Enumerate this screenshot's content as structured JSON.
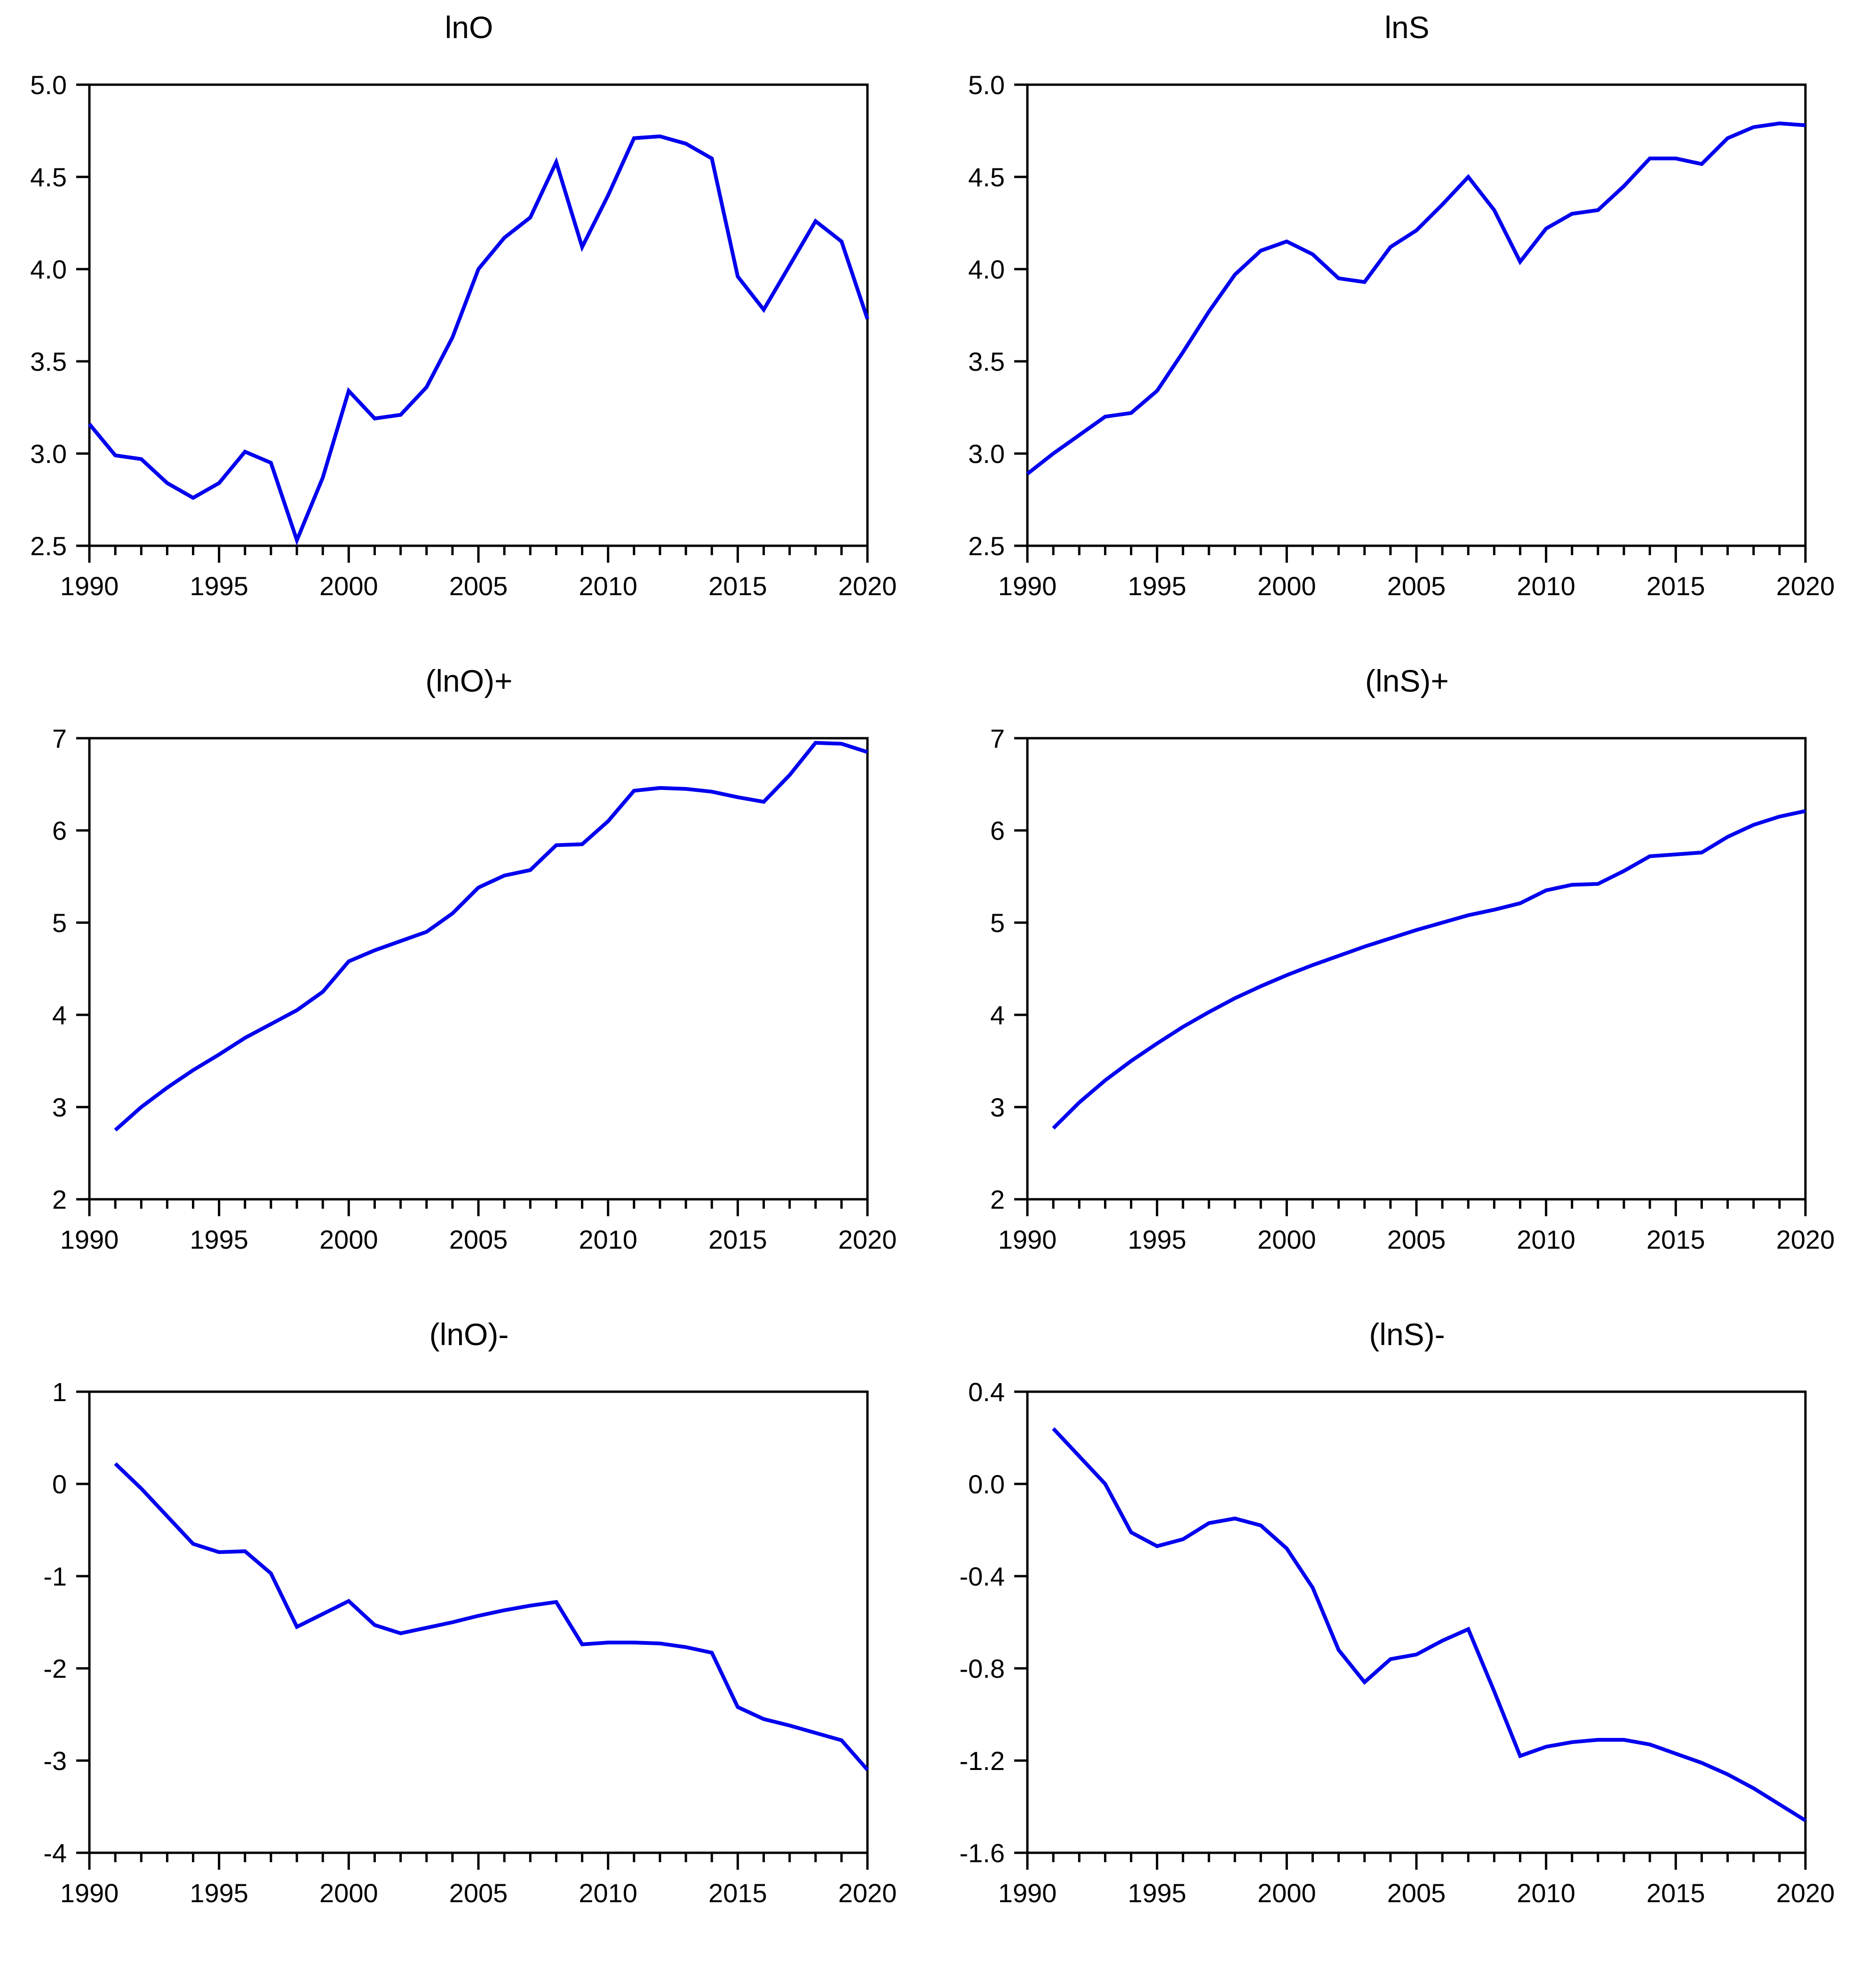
{
  "page": {
    "background": "#FFFFFF",
    "layout": "3x2 grid of line charts"
  },
  "chart_style": {
    "line_color": "#0000EE",
    "axis_color": "#000000",
    "line_width": 8,
    "axis_width": 5,
    "major_tick_len": 36,
    "minor_tick_len": 20,
    "y_tick_len": 28
  },
  "chart_data": [
    {
      "type": "line",
      "title": "lnO",
      "xlabel": "",
      "ylabel": "",
      "grid": false,
      "legend": null,
      "xlim": [
        1990,
        2020
      ],
      "ylim": [
        2.5,
        5.0
      ],
      "xticks": [
        1990,
        1995,
        2000,
        2005,
        2010,
        2015,
        2020
      ],
      "xtick_labels": [
        "1990",
        "1995",
        "2000",
        "2005",
        "2010",
        "2015",
        "2020"
      ],
      "yticks": [
        2.5,
        3.0,
        3.5,
        4.0,
        4.5,
        5.0
      ],
      "ytick_labels": [
        "2.5",
        "3.0",
        "3.5",
        "4.0",
        "4.5",
        "5.0"
      ],
      "x": [
        1990,
        1991,
        1992,
        1993,
        1994,
        1995,
        1996,
        1997,
        1998,
        1999,
        2000,
        2001,
        2002,
        2003,
        2004,
        2005,
        2006,
        2007,
        2008,
        2009,
        2010,
        2011,
        2012,
        2013,
        2014,
        2015,
        2016,
        2017,
        2018,
        2019,
        2020
      ],
      "values": [
        3.16,
        2.99,
        2.97,
        2.84,
        2.76,
        2.84,
        3.01,
        2.95,
        2.53,
        2.87,
        3.34,
        3.19,
        3.21,
        3.36,
        3.63,
        4.0,
        4.17,
        4.28,
        4.58,
        4.12,
        4.4,
        4.71,
        4.72,
        4.68,
        4.6,
        3.96,
        3.78,
        4.02,
        4.26,
        4.15,
        3.73
      ]
    },
    {
      "type": "line",
      "title": "lnS",
      "xlabel": "",
      "ylabel": "",
      "grid": false,
      "legend": null,
      "xlim": [
        1990,
        2020
      ],
      "ylim": [
        2.5,
        5.0
      ],
      "xticks": [
        1990,
        1995,
        2000,
        2005,
        2010,
        2015,
        2020
      ],
      "xtick_labels": [
        "1990",
        "1995",
        "2000",
        "2005",
        "2010",
        "2015",
        "2020"
      ],
      "yticks": [
        2.5,
        3.0,
        3.5,
        4.0,
        4.5,
        5.0
      ],
      "ytick_labels": [
        "2.5",
        "3.0",
        "3.5",
        "4.0",
        "4.5",
        "5.0"
      ],
      "x": [
        1990,
        1991,
        1992,
        1993,
        1994,
        1995,
        1996,
        1997,
        1998,
        1999,
        2000,
        2001,
        2002,
        2003,
        2004,
        2005,
        2006,
        2007,
        2008,
        2009,
        2010,
        2011,
        2012,
        2013,
        2014,
        2015,
        2016,
        2017,
        2018,
        2019,
        2020
      ],
      "values": [
        2.89,
        3.0,
        3.1,
        3.2,
        3.22,
        3.34,
        3.55,
        3.77,
        3.97,
        4.1,
        4.15,
        4.08,
        3.95,
        3.93,
        4.12,
        4.21,
        4.35,
        4.5,
        4.32,
        4.04,
        4.22,
        4.3,
        4.32,
        4.45,
        4.6,
        4.6,
        4.57,
        4.71,
        4.77,
        4.79,
        4.78
      ]
    },
    {
      "type": "line",
      "title": "(lnO)+",
      "xlabel": "",
      "ylabel": "",
      "grid": false,
      "legend": null,
      "xlim": [
        1990,
        2020
      ],
      "ylim": [
        2,
        7
      ],
      "xticks": [
        1990,
        1995,
        2000,
        2005,
        2010,
        2015,
        2020
      ],
      "xtick_labels": [
        "1990",
        "1995",
        "2000",
        "2005",
        "2010",
        "2015",
        "2020"
      ],
      "yticks": [
        2,
        3,
        4,
        5,
        6,
        7
      ],
      "ytick_labels": [
        "2",
        "3",
        "4",
        "5",
        "6",
        "7"
      ],
      "x": [
        1991,
        1992,
        1993,
        1994,
        1995,
        1996,
        1997,
        1998,
        1999,
        2000,
        2001,
        2002,
        2003,
        2004,
        2005,
        2006,
        2007,
        2008,
        2009,
        2010,
        2011,
        2012,
        2013,
        2014,
        2015,
        2016,
        2017,
        2018,
        2019,
        2020
      ],
      "values": [
        2.75,
        3.0,
        3.21,
        3.4,
        3.57,
        3.75,
        3.9,
        4.05,
        4.25,
        4.58,
        4.7,
        4.8,
        4.9,
        5.1,
        5.38,
        5.51,
        5.57,
        5.84,
        5.85,
        6.1,
        6.43,
        6.46,
        6.45,
        6.42,
        6.36,
        6.31,
        6.6,
        6.95,
        6.94,
        6.85
      ]
    },
    {
      "type": "line",
      "title": "(lnS)+",
      "xlabel": "",
      "ylabel": "",
      "grid": false,
      "legend": null,
      "xlim": [
        1990,
        2020
      ],
      "ylim": [
        2,
        7
      ],
      "xticks": [
        1990,
        1995,
        2000,
        2005,
        2010,
        2015,
        2020
      ],
      "xtick_labels": [
        "1990",
        "1995",
        "2000",
        "2005",
        "2010",
        "2015",
        "2020"
      ],
      "yticks": [
        2,
        3,
        4,
        5,
        6,
        7
      ],
      "ytick_labels": [
        "2",
        "3",
        "4",
        "5",
        "6",
        "7"
      ],
      "x": [
        1991,
        1992,
        1993,
        1994,
        1995,
        1996,
        1997,
        1998,
        1999,
        2000,
        2001,
        2002,
        2003,
        2004,
        2005,
        2006,
        2007,
        2008,
        2009,
        2010,
        2011,
        2012,
        2013,
        2014,
        2015,
        2016,
        2017,
        2018,
        2019,
        2020
      ],
      "values": [
        2.77,
        3.05,
        3.29,
        3.5,
        3.69,
        3.87,
        4.03,
        4.18,
        4.31,
        4.43,
        4.54,
        4.64,
        4.74,
        4.83,
        4.92,
        5.0,
        5.08,
        5.14,
        5.21,
        5.35,
        5.41,
        5.42,
        5.56,
        5.72,
        5.74,
        5.76,
        5.93,
        6.06,
        6.15,
        6.21
      ]
    },
    {
      "type": "line",
      "title": "(lnO)-",
      "xlabel": "",
      "ylabel": "",
      "grid": false,
      "legend": null,
      "xlim": [
        1990,
        2020
      ],
      "ylim": [
        -4,
        1
      ],
      "xticks": [
        1990,
        1995,
        2000,
        2005,
        2010,
        2015,
        2020
      ],
      "xtick_labels": [
        "1990",
        "1995",
        "2000",
        "2005",
        "2010",
        "2015",
        "2020"
      ],
      "yticks": [
        -4,
        -3,
        -2,
        -1,
        0,
        1
      ],
      "ytick_labels": [
        "-4",
        "-3",
        "-2",
        "-1",
        "0",
        "1"
      ],
      "x": [
        1991,
        1992,
        1993,
        1994,
        1995,
        1996,
        1997,
        1998,
        1999,
        2000,
        2001,
        2002,
        2003,
        2004,
        2005,
        2006,
        2007,
        2008,
        2009,
        2010,
        2011,
        2012,
        2013,
        2014,
        2015,
        2016,
        2017,
        2018,
        2019,
        2020
      ],
      "values": [
        0.22,
        -0.05,
        -0.35,
        -0.65,
        -0.74,
        -0.73,
        -0.97,
        -1.55,
        -1.41,
        -1.27,
        -1.53,
        -1.62,
        -1.56,
        -1.5,
        -1.43,
        -1.37,
        -1.32,
        -1.28,
        -1.74,
        -1.72,
        -1.72,
        -1.73,
        -1.77,
        -1.83,
        -2.42,
        -2.55,
        -2.62,
        -2.7,
        -2.78,
        -3.1
      ]
    },
    {
      "type": "line",
      "title": "(lnS)-",
      "xlabel": "",
      "ylabel": "",
      "grid": false,
      "legend": null,
      "xlim": [
        1990,
        2020
      ],
      "ylim": [
        -1.6,
        0.4
      ],
      "xticks": [
        1990,
        1995,
        2000,
        2005,
        2010,
        2015,
        2020
      ],
      "xtick_labels": [
        "1990",
        "1995",
        "2000",
        "2005",
        "2010",
        "2015",
        "2020"
      ],
      "yticks": [
        -1.6,
        -1.2,
        -0.8,
        -0.4,
        0.0,
        0.4
      ],
      "ytick_labels": [
        "-1.6",
        "-1.2",
        "-0.8",
        "-0.4",
        "0.0",
        "0.4"
      ],
      "x": [
        1991,
        1992,
        1993,
        1994,
        1995,
        1996,
        1997,
        1998,
        1999,
        2000,
        2001,
        2002,
        2003,
        2004,
        2005,
        2006,
        2007,
        2008,
        2009,
        2010,
        2011,
        2012,
        2013,
        2014,
        2015,
        2016,
        2017,
        2018,
        2019,
        2020
      ],
      "values": [
        0.24,
        0.12,
        0.0,
        -0.21,
        -0.27,
        -0.24,
        -0.17,
        -0.15,
        -0.18,
        -0.28,
        -0.45,
        -0.72,
        -0.86,
        -0.76,
        -0.74,
        -0.68,
        -0.63,
        -0.9,
        -1.18,
        -1.14,
        -1.12,
        -1.11,
        -1.11,
        -1.13,
        -1.17,
        -1.21,
        -1.26,
        -1.32,
        -1.39,
        -1.46
      ]
    }
  ]
}
